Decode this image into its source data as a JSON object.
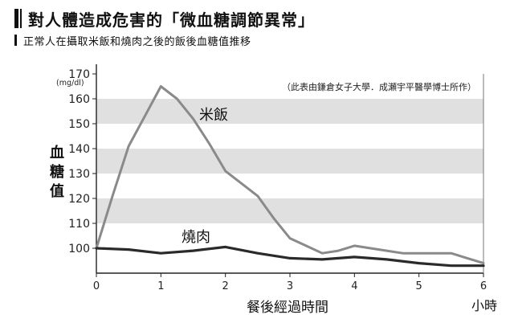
{
  "header": {
    "title": "對人體造成危害的「微血糖調節異常」",
    "subtitle": "正常人在攝取米飯和燒肉之後的飯後血糖值推移"
  },
  "chart_data": {
    "type": "line",
    "title": "對人體造成危害的「微血糖調節異常」",
    "subtitle": "正常人在攝取米飯和燒肉之後的飯後血糖值推移",
    "ylabel": "血糖值",
    "yunit": "(mg/dl)",
    "xlabel": "餐後經過時間",
    "xunit": "小時",
    "source": "（此表由鎌倉女子大學．成瀬宇平醫學博士所作）",
    "xlim": [
      0,
      6
    ],
    "ylim": [
      90,
      170
    ],
    "xticks": [
      "0",
      "1",
      "2",
      "3",
      "4",
      "5",
      "6"
    ],
    "yticks": [
      "100",
      "110",
      "120",
      "130",
      "140",
      "150",
      "160",
      "170"
    ],
    "grid": "alternating horizontal bands",
    "series": [
      {
        "name": "米飯",
        "color": "#8a8a8a",
        "x": [
          0,
          0.25,
          0.5,
          0.75,
          1,
          1.25,
          1.5,
          1.75,
          2,
          2.25,
          2.5,
          2.75,
          3,
          3.25,
          3.5,
          3.75,
          4,
          4.25,
          4.5,
          4.75,
          5,
          5.25,
          5.5,
          5.75,
          6
        ],
        "y": [
          100,
          121,
          141,
          153,
          165,
          160,
          152,
          142,
          131,
          126,
          121,
          112,
          104,
          101,
          98,
          99,
          101,
          100,
          99,
          98,
          98,
          98,
          98,
          96,
          94
        ]
      },
      {
        "name": "燒肉",
        "color": "#2a2a2a",
        "x": [
          0,
          0.5,
          1,
          1.5,
          2,
          2.5,
          3,
          3.5,
          4,
          4.5,
          5,
          5.5,
          6
        ],
        "y": [
          100,
          99.5,
          98,
          99,
          100.5,
          98,
          96,
          95.5,
          96.5,
          95.5,
          94,
          93,
          93
        ]
      }
    ]
  }
}
